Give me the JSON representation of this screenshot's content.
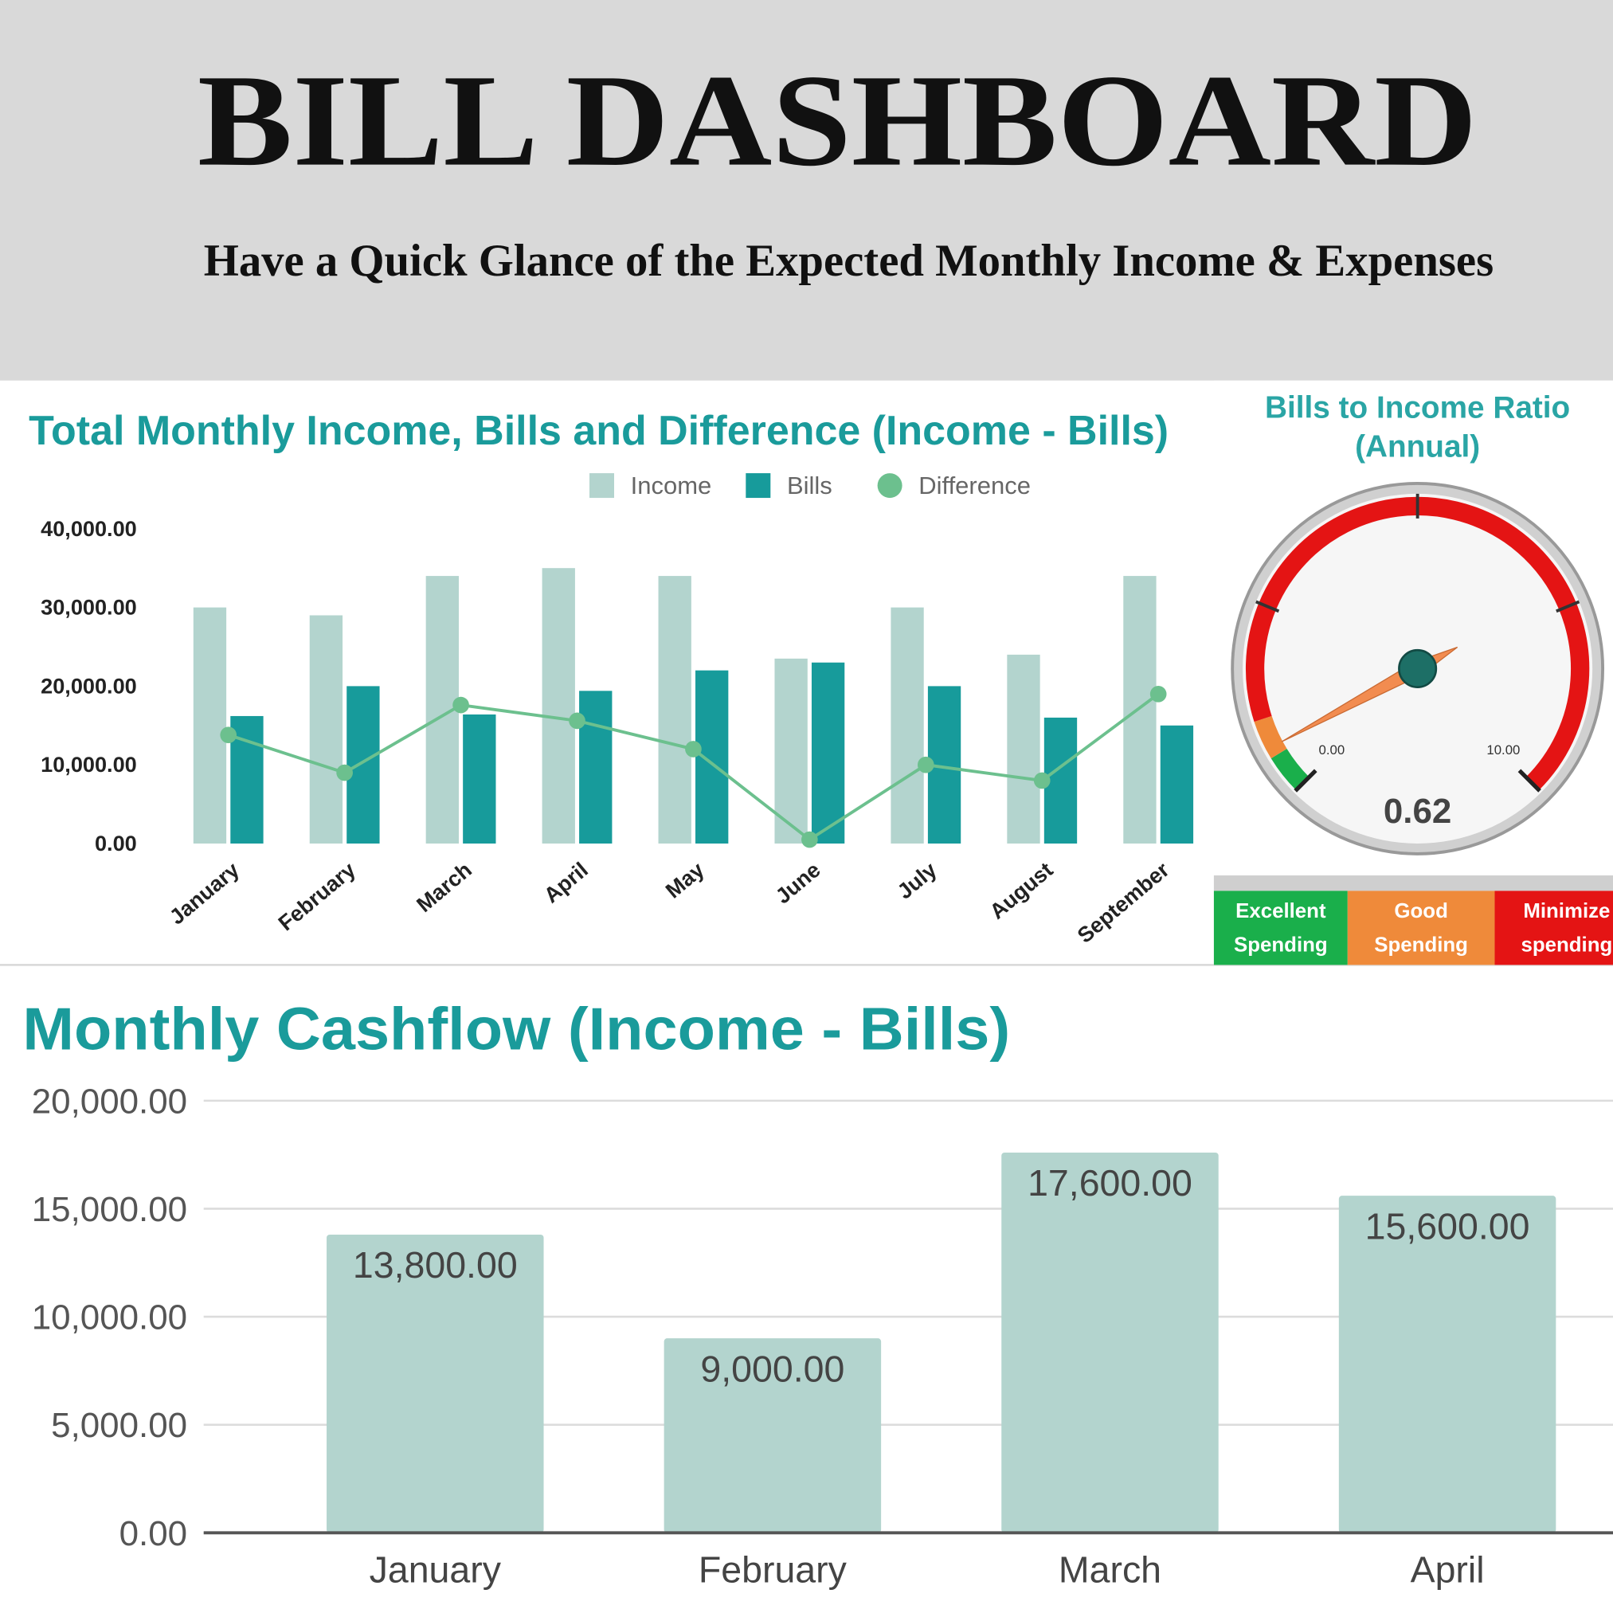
{
  "header": {
    "title": "BILL DASHBOARD",
    "subtitle": "Have a Quick Glance of the Expected Monthly Income & Expenses"
  },
  "chart_data": [
    {
      "type": "bar-line",
      "title": "Total Monthly Income, Bills and Difference (Income - Bills)",
      "categories": [
        "January",
        "February",
        "March",
        "April",
        "May",
        "June",
        "July",
        "August",
        "September"
      ],
      "series": [
        {
          "name": "Income",
          "color": "#b3d4ce",
          "values": [
            30000,
            29000,
            34000,
            35000,
            34000,
            23500,
            30000,
            24000,
            34000
          ]
        },
        {
          "name": "Bills",
          "color": "#179b9b",
          "values": [
            16200,
            20000,
            16400,
            19400,
            22000,
            23000,
            20000,
            16000,
            15000
          ]
        },
        {
          "name": "Difference",
          "type": "line",
          "color": "#6cc08e",
          "values": [
            13800,
            9000,
            17600,
            15600,
            12000,
            500,
            10000,
            8000,
            19000
          ]
        }
      ],
      "ylim": [
        0,
        40000
      ],
      "yticks": [
        {
          "value": 0,
          "label": "0.00"
        },
        {
          "value": 10000,
          "label": "10,000.00"
        },
        {
          "value": 20000,
          "label": "20,000.00"
        },
        {
          "value": 30000,
          "label": "30,000.00"
        },
        {
          "value": 40000,
          "label": "40,000.00"
        }
      ],
      "grid": false
    },
    {
      "type": "gauge",
      "title": "Bills to Income Ratio (Annual)",
      "value": 0.62,
      "lim": [
        0,
        10
      ],
      "ticks": [
        {
          "value": 0,
          "label": "0.00"
        },
        {
          "value": 10,
          "label": "10.00"
        }
      ],
      "bands": [
        {
          "name": "Excellent Spending",
          "color": "#1aaf4b",
          "range": [
            0,
            0.5
          ]
        },
        {
          "name": "Good Spending",
          "color": "#ef8a3a",
          "range": [
            0.5,
            1
          ]
        },
        {
          "name": "Minimize spending",
          "color": "#e41414",
          "range": [
            1,
            10
          ]
        }
      ]
    },
    {
      "type": "bar",
      "title": "Monthly Cashflow (Income - Bills)",
      "categories": [
        "January",
        "February",
        "March",
        "April"
      ],
      "values": [
        13800,
        9000,
        17600,
        15600
      ],
      "value_labels": [
        "13,800.00",
        "9,000.00",
        "17,600.00",
        "15,600.00"
      ],
      "color": "#b3d4ce",
      "ylim": [
        0,
        20000
      ],
      "yticks": [
        {
          "value": 0,
          "label": "0.00"
        },
        {
          "value": 5000,
          "label": "5,000.00"
        },
        {
          "value": 10000,
          "label": "10,000.00"
        },
        {
          "value": 15000,
          "label": "15,000.00"
        },
        {
          "value": 20000,
          "label": "20,000.00"
        }
      ],
      "grid": true
    }
  ]
}
